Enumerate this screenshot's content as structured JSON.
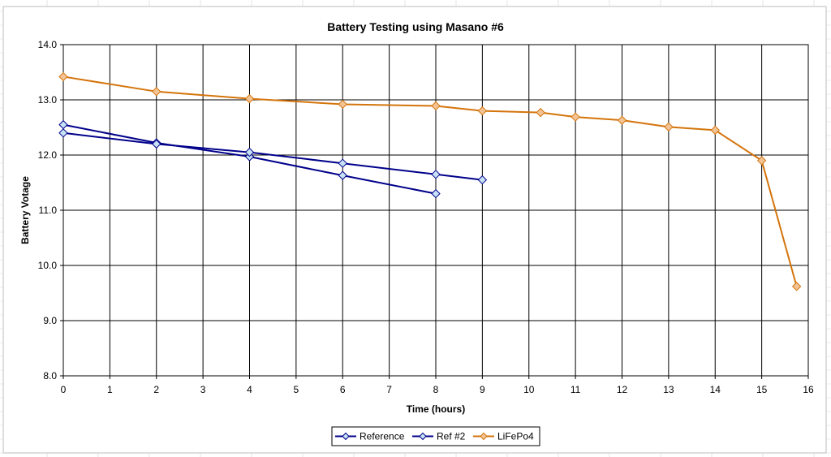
{
  "chart_data": {
    "type": "line",
    "title": "Battery Testing using Masano #6",
    "xlabel": "Time (hours)",
    "ylabel": "Battery Votage",
    "xlim": [
      0,
      16
    ],
    "ylim": [
      8.0,
      14.0
    ],
    "x_ticks": [
      0,
      1,
      2,
      3,
      4,
      5,
      6,
      7,
      8,
      9,
      10,
      11,
      12,
      13,
      14,
      15,
      16
    ],
    "y_ticks": [
      8.0,
      9.0,
      10.0,
      11.0,
      12.0,
      13.0,
      14.0
    ],
    "x_tick_labels": [
      "0",
      "1",
      "2",
      "3",
      "4",
      "5",
      "6",
      "7",
      "8",
      "9",
      "10",
      "11",
      "12",
      "13",
      "14",
      "15",
      "16"
    ],
    "y_tick_labels": [
      "8.0",
      "9.0",
      "10.0",
      "11.0",
      "12.0",
      "13.0",
      "14.0"
    ],
    "grid": true,
    "legend_position": "bottom-center",
    "series": [
      {
        "name": "Reference",
        "color": "#00008b",
        "marker_fill": "#c6e2f4",
        "points": [
          {
            "x": 0,
            "y": 12.55
          },
          {
            "x": 2,
            "y": 12.22
          },
          {
            "x": 4,
            "y": 11.97
          },
          {
            "x": 6,
            "y": 11.63
          },
          {
            "x": 8,
            "y": 11.3
          }
        ]
      },
      {
        "name": "Ref #2",
        "color": "#00008b",
        "marker_fill": "#c6e2f4",
        "points": [
          {
            "x": 0,
            "y": 12.4
          },
          {
            "x": 2,
            "y": 12.2
          },
          {
            "x": 4,
            "y": 12.05
          },
          {
            "x": 6,
            "y": 11.85
          },
          {
            "x": 8,
            "y": 11.65
          },
          {
            "x": 9,
            "y": 11.55
          }
        ]
      },
      {
        "name": "LiFePo4",
        "color": "#d4740b",
        "marker_fill": "#f2c394",
        "points": [
          {
            "x": 0,
            "y": 13.42
          },
          {
            "x": 2,
            "y": 13.15
          },
          {
            "x": 4,
            "y": 13.02
          },
          {
            "x": 6,
            "y": 12.92
          },
          {
            "x": 8,
            "y": 12.89
          },
          {
            "x": 9,
            "y": 12.8
          },
          {
            "x": 10.25,
            "y": 12.77
          },
          {
            "x": 11,
            "y": 12.69
          },
          {
            "x": 12,
            "y": 12.63
          },
          {
            "x": 13,
            "y": 12.51
          },
          {
            "x": 14,
            "y": 12.45
          },
          {
            "x": 15,
            "y": 11.9
          },
          {
            "x": 15.75,
            "y": 9.62
          }
        ]
      }
    ]
  }
}
